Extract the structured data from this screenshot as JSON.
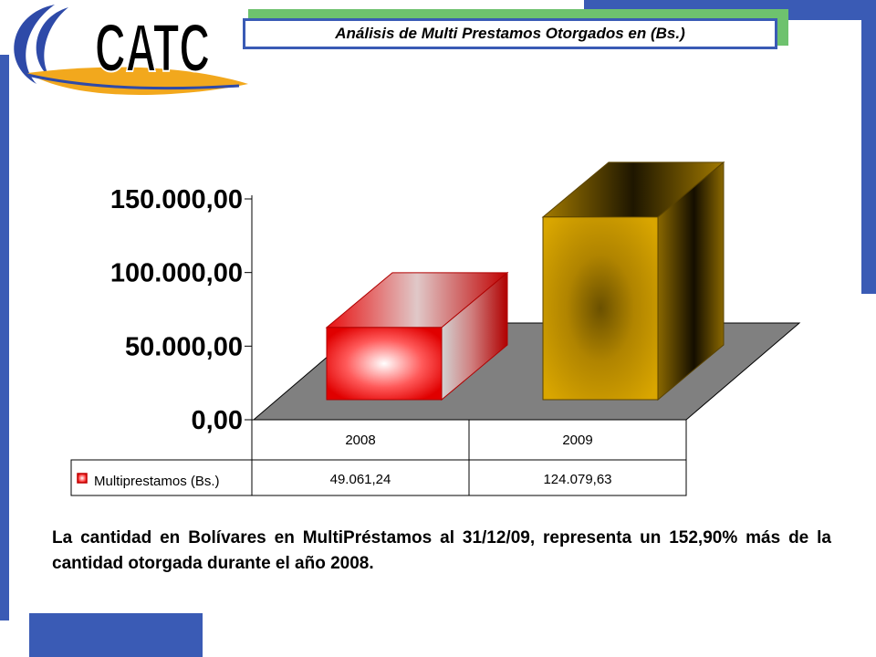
{
  "header": {
    "logo_text": "CATC",
    "title": "Análisis de Multi Prestamos Otorgados en  (Bs.)"
  },
  "chart_data": {
    "type": "bar",
    "title": "",
    "xlabel": "",
    "ylabel": "",
    "categories": [
      "2008",
      "2009"
    ],
    "series": [
      {
        "name": "Multiprestamos (Bs.)",
        "values": [
          49061.24,
          124079.63
        ],
        "value_labels": [
          "49.061,24",
          "124.079,63"
        ],
        "colors": [
          "#ff2020",
          "#c99a00"
        ]
      }
    ],
    "ylim": [
      0,
      150000
    ],
    "yticks": [
      0,
      50000,
      100000,
      150000
    ],
    "ytick_labels": [
      "0,00",
      "50.000,00",
      "100.000,00",
      "150.000,00"
    ],
    "grid": false,
    "floor_color": "#808080",
    "data_table": true
  },
  "description": "La cantidad en Bolívares en MultiPréstamos al 31/12/09, representa un 152,90% más de la cantidad otorgada durante el año 2008.",
  "colors": {
    "frame": "#3a5bb5",
    "accent_green": "#6ec26e",
    "logo_orange": "#f2a81d",
    "logo_blue": "#2e4aa8"
  }
}
